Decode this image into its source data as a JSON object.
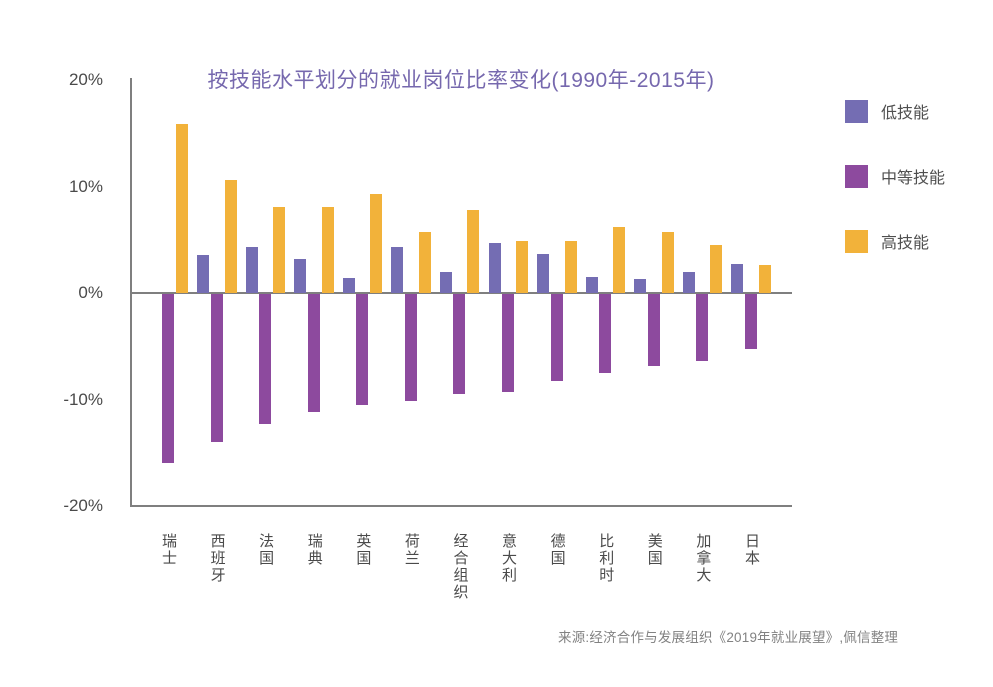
{
  "title": "按技能水平划分的就业岗位比率变化(1990年-2015年)",
  "source": "来源:经济合作与发展组织《2019年就业展望》,佩信整理",
  "colors": {
    "low": "#746db3",
    "medium": "#8d4a9e",
    "high": "#f2b23a",
    "axis": "#7f7f7f",
    "tick_text": "#4a4a4a",
    "category_text": "#4a4a4a",
    "title_text": "#7668ae",
    "source_text": "#828282",
    "legend_text": "#4f4f4f"
  },
  "chart_data": {
    "type": "bar",
    "title": "按技能水平划分的就业岗位比率变化(1990年-2015年)",
    "xlabel": "",
    "ylabel": "",
    "ylim": [
      -20,
      20
    ],
    "grid": false,
    "legend_position": "right",
    "categories": [
      "瑞士",
      "西班牙",
      "法国",
      "瑞典",
      "英国",
      "荷兰",
      "经合组织",
      "意大利",
      "德国",
      "比利时",
      "美国",
      "加拿大",
      "日本"
    ],
    "series": [
      {
        "name": "低技能",
        "color_key": "low",
        "values": [
          0,
          3.6,
          4.3,
          3.2,
          1.4,
          4.3,
          2.0,
          4.7,
          3.7,
          1.5,
          1.3,
          2.0,
          2.7
        ]
      },
      {
        "name": "中等技能",
        "color_key": "medium",
        "values": [
          -15.9,
          -13.9,
          -12.2,
          -11.1,
          -10.4,
          -10.0,
          -9.4,
          -9.2,
          -8.2,
          -7.4,
          -6.8,
          -6.3,
          -5.2
        ]
      },
      {
        "name": "高技能",
        "color_key": "high",
        "values": [
          15.9,
          10.6,
          8.1,
          8.1,
          9.3,
          5.7,
          7.8,
          4.9,
          4.9,
          6.2,
          5.7,
          4.5,
          2.6
        ]
      }
    ],
    "yticks": [
      {
        "label": "20%",
        "value": 20
      },
      {
        "label": "10%",
        "value": 10
      },
      {
        "label": "0%",
        "value": 0
      },
      {
        "label": "-10%",
        "value": -10
      },
      {
        "label": "-20%",
        "value": -20
      }
    ]
  }
}
